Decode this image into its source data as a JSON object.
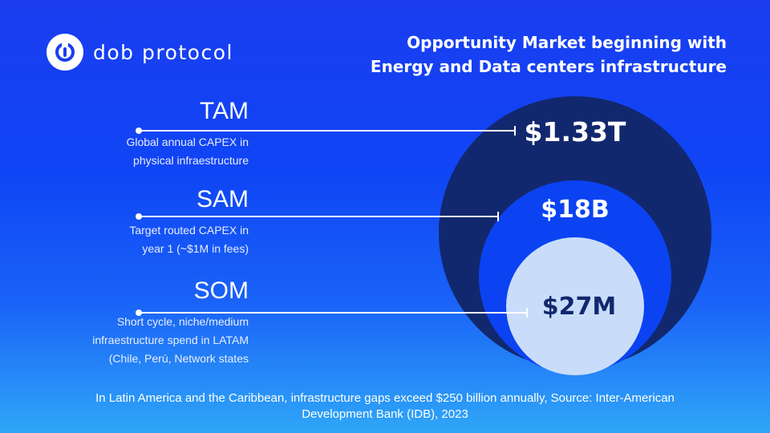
{
  "brand": {
    "name": "dob protocol",
    "logo_icon": "dob-logo-icon"
  },
  "headline": {
    "line1": "Opportunity Market beginning with",
    "line2": "Energy and Data centers infrastructure"
  },
  "segments": [
    {
      "code": "TAM",
      "desc_line1": "Global annual CAPEX in",
      "desc_line2": "physical infraestructure",
      "value": "$1.33T"
    },
    {
      "code": "SAM",
      "desc_line1": "Target routed CAPEX in",
      "desc_line2": "year 1 (~$1M in fees)",
      "value": "$18B"
    },
    {
      "code": "SOM",
      "desc_line1": "Short cycle, niche/medium",
      "desc_line2": "infraestructure spend in LATAM",
      "desc_line3": "(Chile, Perú, Network states",
      "value": "$27M"
    }
  ],
  "colors": {
    "tam_circle": "#12286e",
    "sam_circle": "#0b43f3",
    "som_circle": "#c9ddfb",
    "leader_line": "#ffffff"
  },
  "footnote": {
    "line1": "In Latin America and the Caribbean, infrastructure gaps exceed $250 billion annually, Source: Inter-American",
    "line2": "Development Bank (IDB), 2023"
  }
}
